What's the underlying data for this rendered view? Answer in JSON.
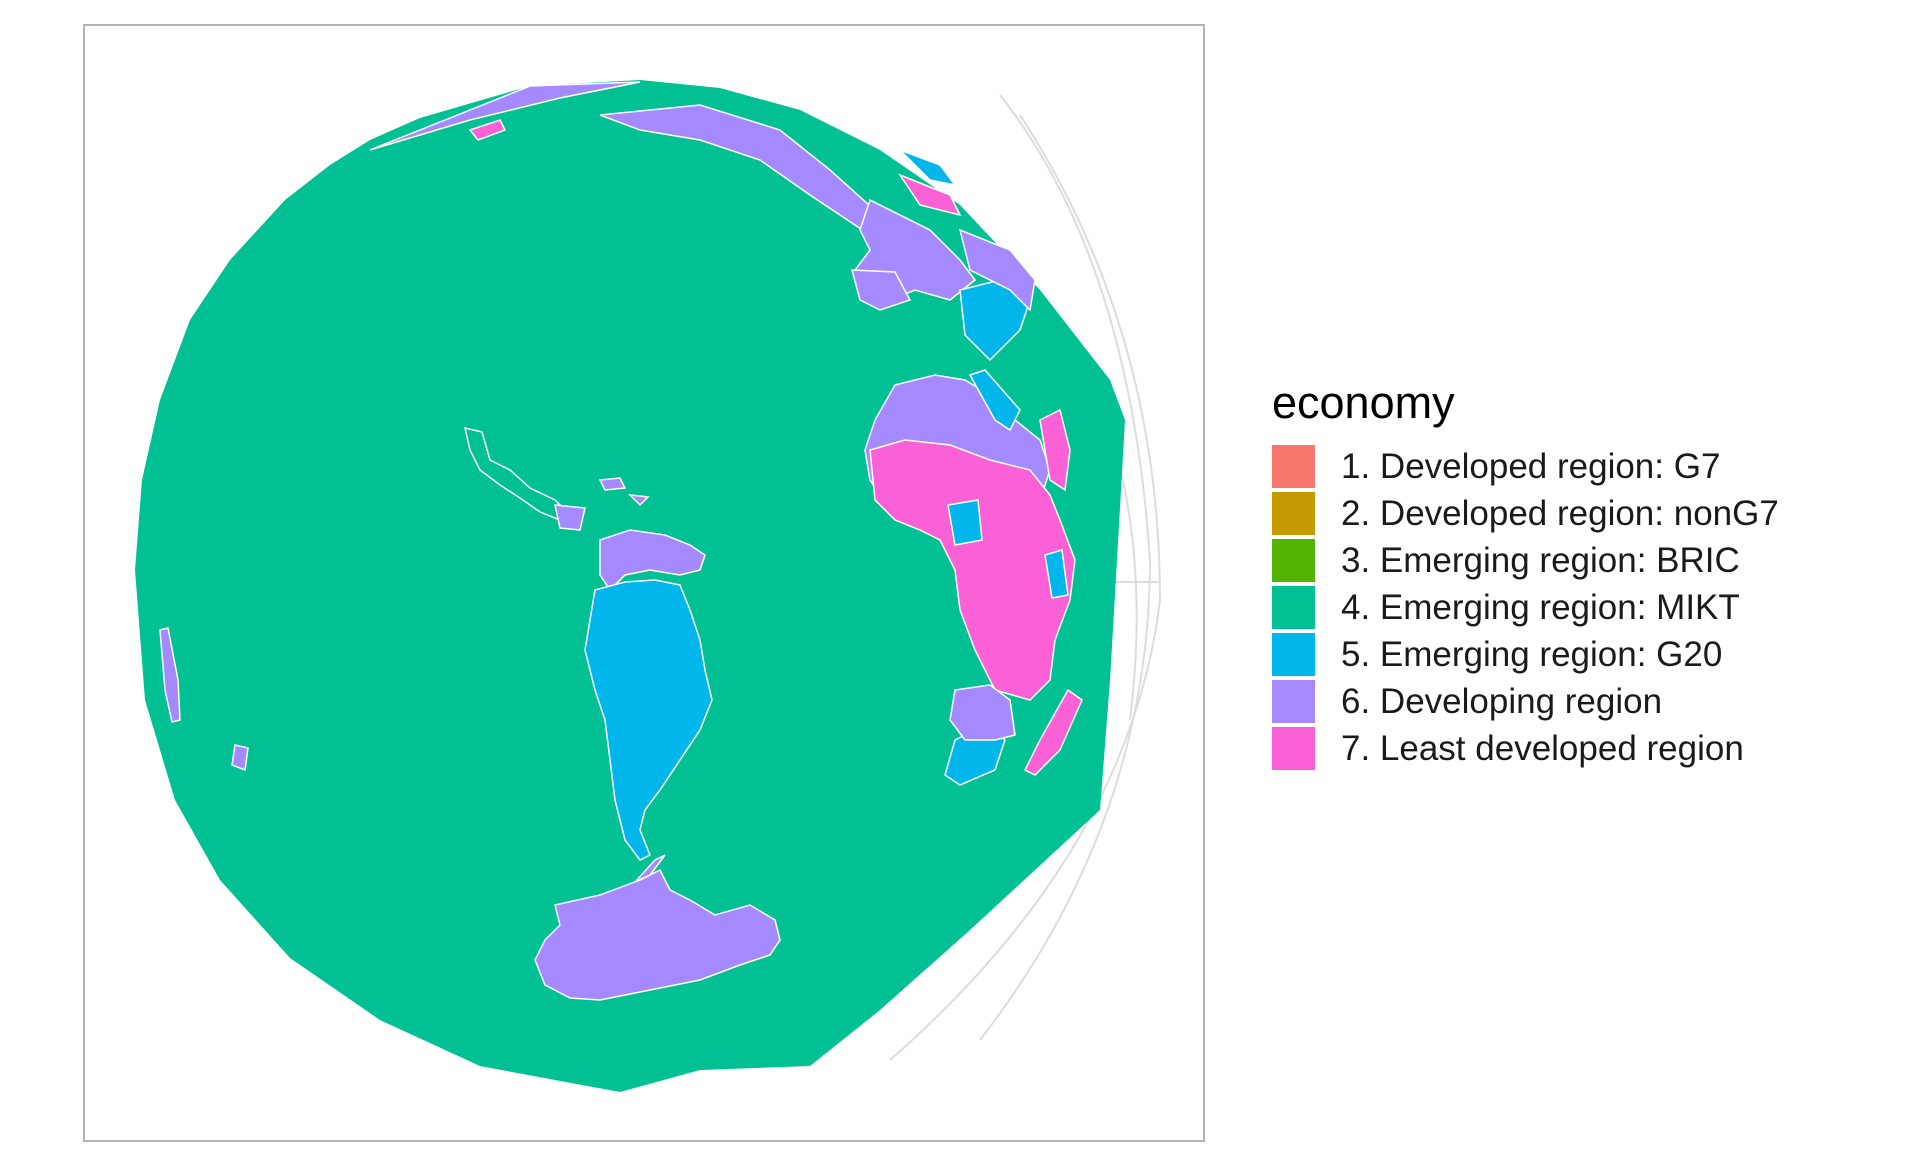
{
  "legend": {
    "title": "economy",
    "items": [
      {
        "label": "1. Developed region: G7",
        "color": "#F8766D"
      },
      {
        "label": "2. Developed region: nonG7",
        "color": "#C49A00"
      },
      {
        "label": "3. Emerging region: BRIC",
        "color": "#53B400"
      },
      {
        "label": "4. Emerging region: MIKT",
        "color": "#00C094"
      },
      {
        "label": "5. Emerging region: G20",
        "color": "#00B6EB"
      },
      {
        "label": "6. Developing region",
        "color": "#A58AFF"
      },
      {
        "label": "7. Least developed region",
        "color": "#FB61D7"
      }
    ]
  },
  "map": {
    "projection": "orthographic",
    "visible_regions": [
      {
        "name": "ocean-fill",
        "economy": "4. Emerging region: MIKT"
      },
      {
        "name": "south-america-south",
        "economy": "5. Emerging region: G20"
      },
      {
        "name": "south-america-north",
        "economy": "6. Developing region"
      },
      {
        "name": "antarctica",
        "economy": "6. Developing region"
      },
      {
        "name": "west-africa",
        "economy": "6. Developing region"
      },
      {
        "name": "central-africa",
        "economy": "7. Least developed region"
      },
      {
        "name": "southern-africa",
        "economy": "5. Emerging region: G20"
      },
      {
        "name": "europe-mediterranean",
        "economy": "6. Developing region"
      },
      {
        "name": "east-europe",
        "economy": "5. Emerging region: G20"
      },
      {
        "name": "north-band",
        "economy": "6. Developing region"
      }
    ]
  }
}
